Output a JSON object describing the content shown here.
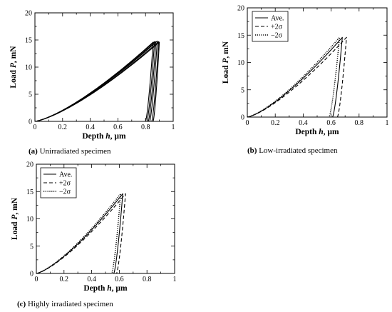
{
  "chart_data": [
    {
      "id": "a",
      "type": "line",
      "caption_letter": "(a)",
      "caption_text": " Unirradiated specimen",
      "xlabel_main": "Depth ",
      "xlabel_var": "h",
      "xlabel_unit": ", µm",
      "ylabel_main": "Load ",
      "ylabel_var": "P",
      "ylabel_unit": ", mN",
      "xlim": [
        0,
        1.0
      ],
      "ylim": [
        0,
        20
      ],
      "xticks": [
        0,
        0.2,
        0.4,
        0.6,
        0.8,
        1
      ],
      "xtick_labels": [
        "0",
        "0.2",
        "0.4",
        "0.6",
        "0.8",
        "1"
      ],
      "yticks": [
        0,
        5,
        10,
        15,
        20
      ],
      "ytick_labels": [
        "0",
        "5",
        "10",
        "15",
        "20"
      ],
      "legend": [],
      "series": [
        {
          "dash": "solid",
          "peak_x": 0.855,
          "peak_y": 14.6,
          "end_x": 0.8
        },
        {
          "dash": "solid",
          "peak_x": 0.865,
          "peak_y": 14.7,
          "end_x": 0.81
        },
        {
          "dash": "solid",
          "peak_x": 0.875,
          "peak_y": 14.7,
          "end_x": 0.82
        },
        {
          "dash": "solid",
          "peak_x": 0.885,
          "peak_y": 14.8,
          "end_x": 0.83
        },
        {
          "dash": "solid",
          "peak_x": 0.895,
          "peak_y": 14.7,
          "end_x": 0.845
        },
        {
          "dash": "solid",
          "peak_x": 0.9,
          "peak_y": 14.6,
          "end_x": 0.855
        }
      ]
    },
    {
      "id": "b",
      "type": "line",
      "caption_letter": "(b)",
      "caption_text": " Low-irradiated specimen",
      "xlabel_main": "Depth ",
      "xlabel_var": "h",
      "xlabel_unit": ", µm",
      "ylabel_main": "Load ",
      "ylabel_var": "P",
      "ylabel_unit": ", mN",
      "xlim": [
        0,
        1.0
      ],
      "ylim": [
        0,
        20
      ],
      "xticks": [
        0,
        0.2,
        0.4,
        0.6,
        0.8,
        1
      ],
      "xtick_labels": [
        "0",
        "0.2",
        "0.4",
        "0.6",
        "0.8",
        "1"
      ],
      "yticks": [
        0,
        5,
        10,
        15,
        20
      ],
      "ytick_labels": [
        "0",
        "5",
        "10",
        "15",
        "20"
      ],
      "legend": [
        "Ave.",
        "+2σ",
        "−2σ"
      ],
      "series": [
        {
          "name": "Ave.",
          "dash": "solid",
          "peak_x": 0.68,
          "peak_y": 14.6,
          "end_x": 0.61
        },
        {
          "name": "+2σ",
          "dash": "dashed",
          "peak_x": 0.71,
          "peak_y": 14.6,
          "end_x": 0.645
        },
        {
          "name": "−2σ",
          "dash": "dotted",
          "peak_x": 0.66,
          "peak_y": 14.6,
          "end_x": 0.585
        }
      ]
    },
    {
      "id": "c",
      "type": "line",
      "caption_letter": "(c)",
      "caption_text": " Highly irradiated specimen",
      "xlabel_main": "Depth ",
      "xlabel_var": "h",
      "xlabel_unit": ", µm",
      "ylabel_main": "Load ",
      "ylabel_var": "P",
      "ylabel_unit": ", mN",
      "xlim": [
        0,
        1.0
      ],
      "ylim": [
        0,
        20
      ],
      "xticks": [
        0,
        0.2,
        0.4,
        0.6,
        0.8,
        1
      ],
      "xtick_labels": [
        "0",
        "0.2",
        "0.4",
        "0.6",
        "0.8",
        "1"
      ],
      "yticks": [
        0,
        5,
        10,
        15,
        20
      ],
      "ytick_labels": [
        "0",
        "5",
        "10",
        "15",
        "20"
      ],
      "legend": [
        "Ave.",
        "+2σ",
        "−2σ"
      ],
      "series": [
        {
          "name": "Ave.",
          "dash": "solid",
          "peak_x": 0.625,
          "peak_y": 14.6,
          "end_x": 0.56
        },
        {
          "name": "+2σ",
          "dash": "dashed",
          "peak_x": 0.645,
          "peak_y": 14.6,
          "end_x": 0.58
        },
        {
          "name": "−2σ",
          "dash": "dotted",
          "peak_x": 0.61,
          "peak_y": 14.6,
          "end_x": 0.545
        }
      ]
    }
  ]
}
